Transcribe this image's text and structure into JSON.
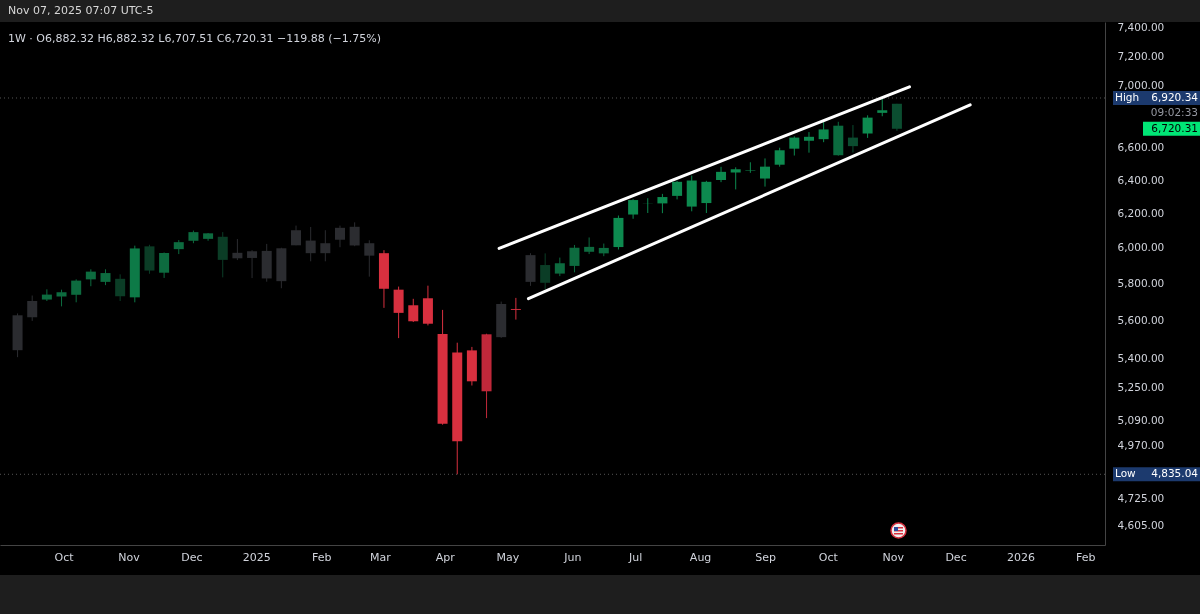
{
  "chart_data": {
    "type": "candlestick",
    "title": "1W · O6,882.32 H6,882.32 L6,707.51 C6,720.31 −119.88 (−1.75%)",
    "x": [
      "2024-09-09",
      "2024-09-16",
      "2024-09-23",
      "2024-09-30",
      "2024-10-07",
      "2024-10-14",
      "2024-10-21",
      "2024-10-28",
      "2024-11-04",
      "2024-11-11",
      "2024-11-18",
      "2024-11-25",
      "2024-12-02",
      "2024-12-09",
      "2024-12-16",
      "2024-12-23",
      "2024-12-30",
      "2025-01-06",
      "2025-01-13",
      "2025-01-20",
      "2025-01-27",
      "2025-02-03",
      "2025-02-10",
      "2025-02-17",
      "2025-02-24",
      "2025-03-03",
      "2025-03-10",
      "2025-03-17",
      "2025-03-24",
      "2025-03-31",
      "2025-04-07",
      "2025-04-14",
      "2025-04-21",
      "2025-04-28",
      "2025-05-05",
      "2025-05-12",
      "2025-05-19",
      "2025-05-26",
      "2025-06-02",
      "2025-06-09",
      "2025-06-16",
      "2025-06-23",
      "2025-06-30",
      "2025-07-07",
      "2025-07-14",
      "2025-07-21",
      "2025-07-28",
      "2025-08-04",
      "2025-08-11",
      "2025-08-18",
      "2025-08-25",
      "2025-09-01",
      "2025-09-08",
      "2025-09-15",
      "2025-09-22",
      "2025-09-29",
      "2025-10-06",
      "2025-10-13",
      "2025-10-20",
      "2025-10-27",
      "2025-11-03"
    ],
    "ohlc": [
      [
        5442,
        5636,
        5406,
        5626
      ],
      [
        5615,
        5733,
        5596,
        5703
      ],
      [
        5711,
        5767,
        5703,
        5738
      ],
      [
        5727,
        5765,
        5674,
        5751
      ],
      [
        5737,
        5822,
        5696,
        5815
      ],
      [
        5822,
        5878,
        5784,
        5865
      ],
      [
        5857,
        5878,
        5790,
        5808
      ],
      [
        5825,
        5850,
        5703,
        5729
      ],
      [
        5723,
        6012,
        5696,
        5996
      ],
      [
        6008,
        6017,
        5853,
        5871
      ],
      [
        5859,
        5973,
        5830,
        5970
      ],
      [
        5992,
        6044,
        5964,
        6032
      ],
      [
        6040,
        6099,
        6026,
        6090
      ],
      [
        6083,
        6085,
        6040,
        6051
      ],
      [
        6063,
        6090,
        5833,
        5931
      ],
      [
        5940,
        6050,
        5930,
        5971
      ],
      [
        5980,
        5986,
        5829,
        5942
      ],
      [
        5982,
        6022,
        5809,
        5827
      ],
      [
        5812,
        6000,
        5773,
        5997
      ],
      [
        6014,
        6128,
        6014,
        6101
      ],
      [
        5969,
        6120,
        5923,
        6041
      ],
      [
        5969,
        6101,
        5923,
        6026
      ],
      [
        6046,
        6128,
        6003,
        6115
      ],
      [
        6121,
        6147,
        6009,
        6013
      ],
      [
        6026,
        6043,
        5837,
        5955
      ],
      [
        5969,
        5986,
        5666,
        5770
      ],
      [
        5765,
        5782,
        5505,
        5639
      ],
      [
        5680,
        5715,
        5590,
        5594
      ],
      [
        5718,
        5787,
        5572,
        5581
      ],
      [
        5527,
        5655,
        5069,
        5074
      ],
      [
        5430,
        5481,
        4835,
        4990
      ],
      [
        5441,
        5459,
        5262,
        5283
      ],
      [
        5233,
        5528,
        5101,
        5525
      ],
      [
        5510,
        5700,
        5506,
        5687
      ],
      [
        5655,
        5720,
        5603,
        5660
      ],
      [
        5808,
        5969,
        5786,
        5958
      ],
      [
        5902,
        5968,
        5768,
        5803
      ],
      [
        5854,
        5944,
        5840,
        5912
      ],
      [
        5897,
        6016,
        5861,
        6000
      ],
      [
        6005,
        6059,
        5964,
        5977
      ],
      [
        5999,
        6024,
        5952,
        5968
      ],
      [
        6004,
        6187,
        5990,
        6173
      ],
      [
        6193,
        6284,
        6168,
        6279
      ],
      [
        6259,
        6290,
        6202,
        6260
      ],
      [
        6259,
        6316,
        6201,
        6297
      ],
      [
        6304,
        6395,
        6283,
        6389
      ],
      [
        6240,
        6427,
        6212,
        6397
      ],
      [
        6261,
        6395,
        6202,
        6389
      ],
      [
        6400,
        6481,
        6387,
        6450
      ],
      [
        6446,
        6478,
        6343,
        6466
      ],
      [
        6457,
        6509,
        6444,
        6460
      ],
      [
        6409,
        6533,
        6360,
        6482
      ],
      [
        6494,
        6600,
        6482,
        6584
      ],
      [
        6594,
        6672,
        6551,
        6664
      ],
      [
        6644,
        6699,
        6569,
        6669
      ],
      [
        6654,
        6764,
        6635,
        6716
      ],
      [
        6740,
        6765,
        6550,
        6553
      ],
      [
        6610,
        6744,
        6570,
        6664
      ],
      [
        6690,
        6807,
        6662,
        6792
      ],
      [
        6823,
        6920.34,
        6801,
        6840
      ],
      [
        6882.32,
        6882.32,
        6707.51,
        6720.31
      ]
    ],
    "colors": [
      "#2b2c30",
      "#2b2c30",
      "#0d6b3f",
      "#0d6b3f",
      "#0d6b3f",
      "#0d6b3f",
      "#0d6b3f",
      "#0b3d26",
      "#0d7a47",
      "#0b3d26",
      "#0d6b3f",
      "#0d6b3f",
      "#0d6b3f",
      "#0d6b3f",
      "#0b3d26",
      "#2b2c30",
      "#2b2c30",
      "#2b2c30",
      "#2b2c30",
      "#2b2c30",
      "#2b2c30",
      "#2b2c30",
      "#2b2c30",
      "#2b2c30",
      "#2b2c30",
      "#d8303f",
      "#d8303f",
      "#d8303f",
      "#d8303f",
      "#d8303f",
      "#d8303f",
      "#d8303f",
      "#c0283a",
      "#2b2c30",
      "#d8303f",
      "#2b2c30",
      "#0b3d26",
      "#0d6b3f",
      "#0d6b3f",
      "#0d6b3f",
      "#0d6b3f",
      "#0d8a4f",
      "#0d8a4f",
      "#0d8a4f",
      "#0d8a4f",
      "#0d8a4f",
      "#0d8a4f",
      "#0d8a4f",
      "#0d8a4f",
      "#0d8a4f",
      "#0d8a4f",
      "#0d8a4f",
      "#0d8a4f",
      "#0d8a4f",
      "#0d8a4f",
      "#0d8a4f",
      "#0b6b3f",
      "#0b4d30",
      "#0d8a4f",
      "#0d8a4f",
      "#0b4d30"
    ],
    "series": [
      {
        "type": "line",
        "color": "#ffffff",
        "x": [
          "2025-04-27",
          "2025-11-09"
        ],
        "values": [
          5996,
          6994
        ]
      },
      {
        "type": "line",
        "color": "#ffffff",
        "x": [
          "2025-05-11",
          "2025-12-08"
        ],
        "values": [
          5716,
          6875
        ]
      }
    ],
    "log": "y",
    "xlim": [
      "2024-09-03",
      "2026-02-08"
    ],
    "xticks": [
      {
        "value": "2024-10-01",
        "label": "Oct"
      },
      {
        "value": "2024-11-01",
        "label": "Nov"
      },
      {
        "value": "2024-12-01",
        "label": "Dec"
      },
      {
        "value": "2025-01-01",
        "label": "2025"
      },
      {
        "value": "2025-02-01",
        "label": "Feb"
      },
      {
        "value": "2025-03-01",
        "label": "Mar"
      },
      {
        "value": "2025-04-01",
        "label": "Apr"
      },
      {
        "value": "2025-05-01",
        "label": "May"
      },
      {
        "value": "2025-06-01",
        "label": "Jun"
      },
      {
        "value": "2025-07-01",
        "label": "Jul"
      },
      {
        "value": "2025-08-01",
        "label": "Aug"
      },
      {
        "value": "2025-09-01",
        "label": "Sep"
      },
      {
        "value": "2025-10-01",
        "label": "Oct"
      },
      {
        "value": "2025-11-01",
        "label": "Nov"
      },
      {
        "value": "2025-12-01",
        "label": "Dec"
      },
      {
        "value": "2026-01-01",
        "label": "2026"
      },
      {
        "value": "2026-02-01",
        "label": "Feb"
      }
    ],
    "ylim": [
      4520,
      7440
    ],
    "yticks": [
      {
        "value": 4605,
        "label": "4,605.00"
      },
      {
        "value": 4725,
        "label": "4,725.00"
      },
      {
        "value": 4970,
        "label": "4,970.00"
      },
      {
        "value": 5090,
        "label": "5,090.00"
      },
      {
        "value": 5250,
        "label": "5,250.00"
      },
      {
        "value": 5400,
        "label": "5,400.00"
      },
      {
        "value": 5600,
        "label": "5,600.00"
      },
      {
        "value": 5800,
        "label": "5,800.00"
      },
      {
        "value": 6000,
        "label": "6,000.00"
      },
      {
        "value": 6200,
        "label": "6,200.00"
      },
      {
        "value": 6400,
        "label": "6,400.00"
      },
      {
        "value": 6600,
        "label": "6,600.00"
      },
      {
        "value": 7000,
        "label": "7,000.00"
      },
      {
        "value": 7200,
        "label": "7,200.00"
      },
      {
        "value": 7400,
        "label": "7,400.00"
      }
    ],
    "ref_lines": [
      {
        "axis": "y",
        "value": 6920.34,
        "label": "High",
        "color": "#555555",
        "line_style": "dotted"
      },
      {
        "axis": "y",
        "value": 4835.04,
        "label": "Low",
        "color": "#555555",
        "line_style": "dotted"
      }
    ],
    "annotations": [
      "Nov 07, 2025 07:07 UTC-5",
      "6,720.31",
      "09:02:33",
      "6,920.34",
      "4,835.04"
    ],
    "grid": false
  }
}
